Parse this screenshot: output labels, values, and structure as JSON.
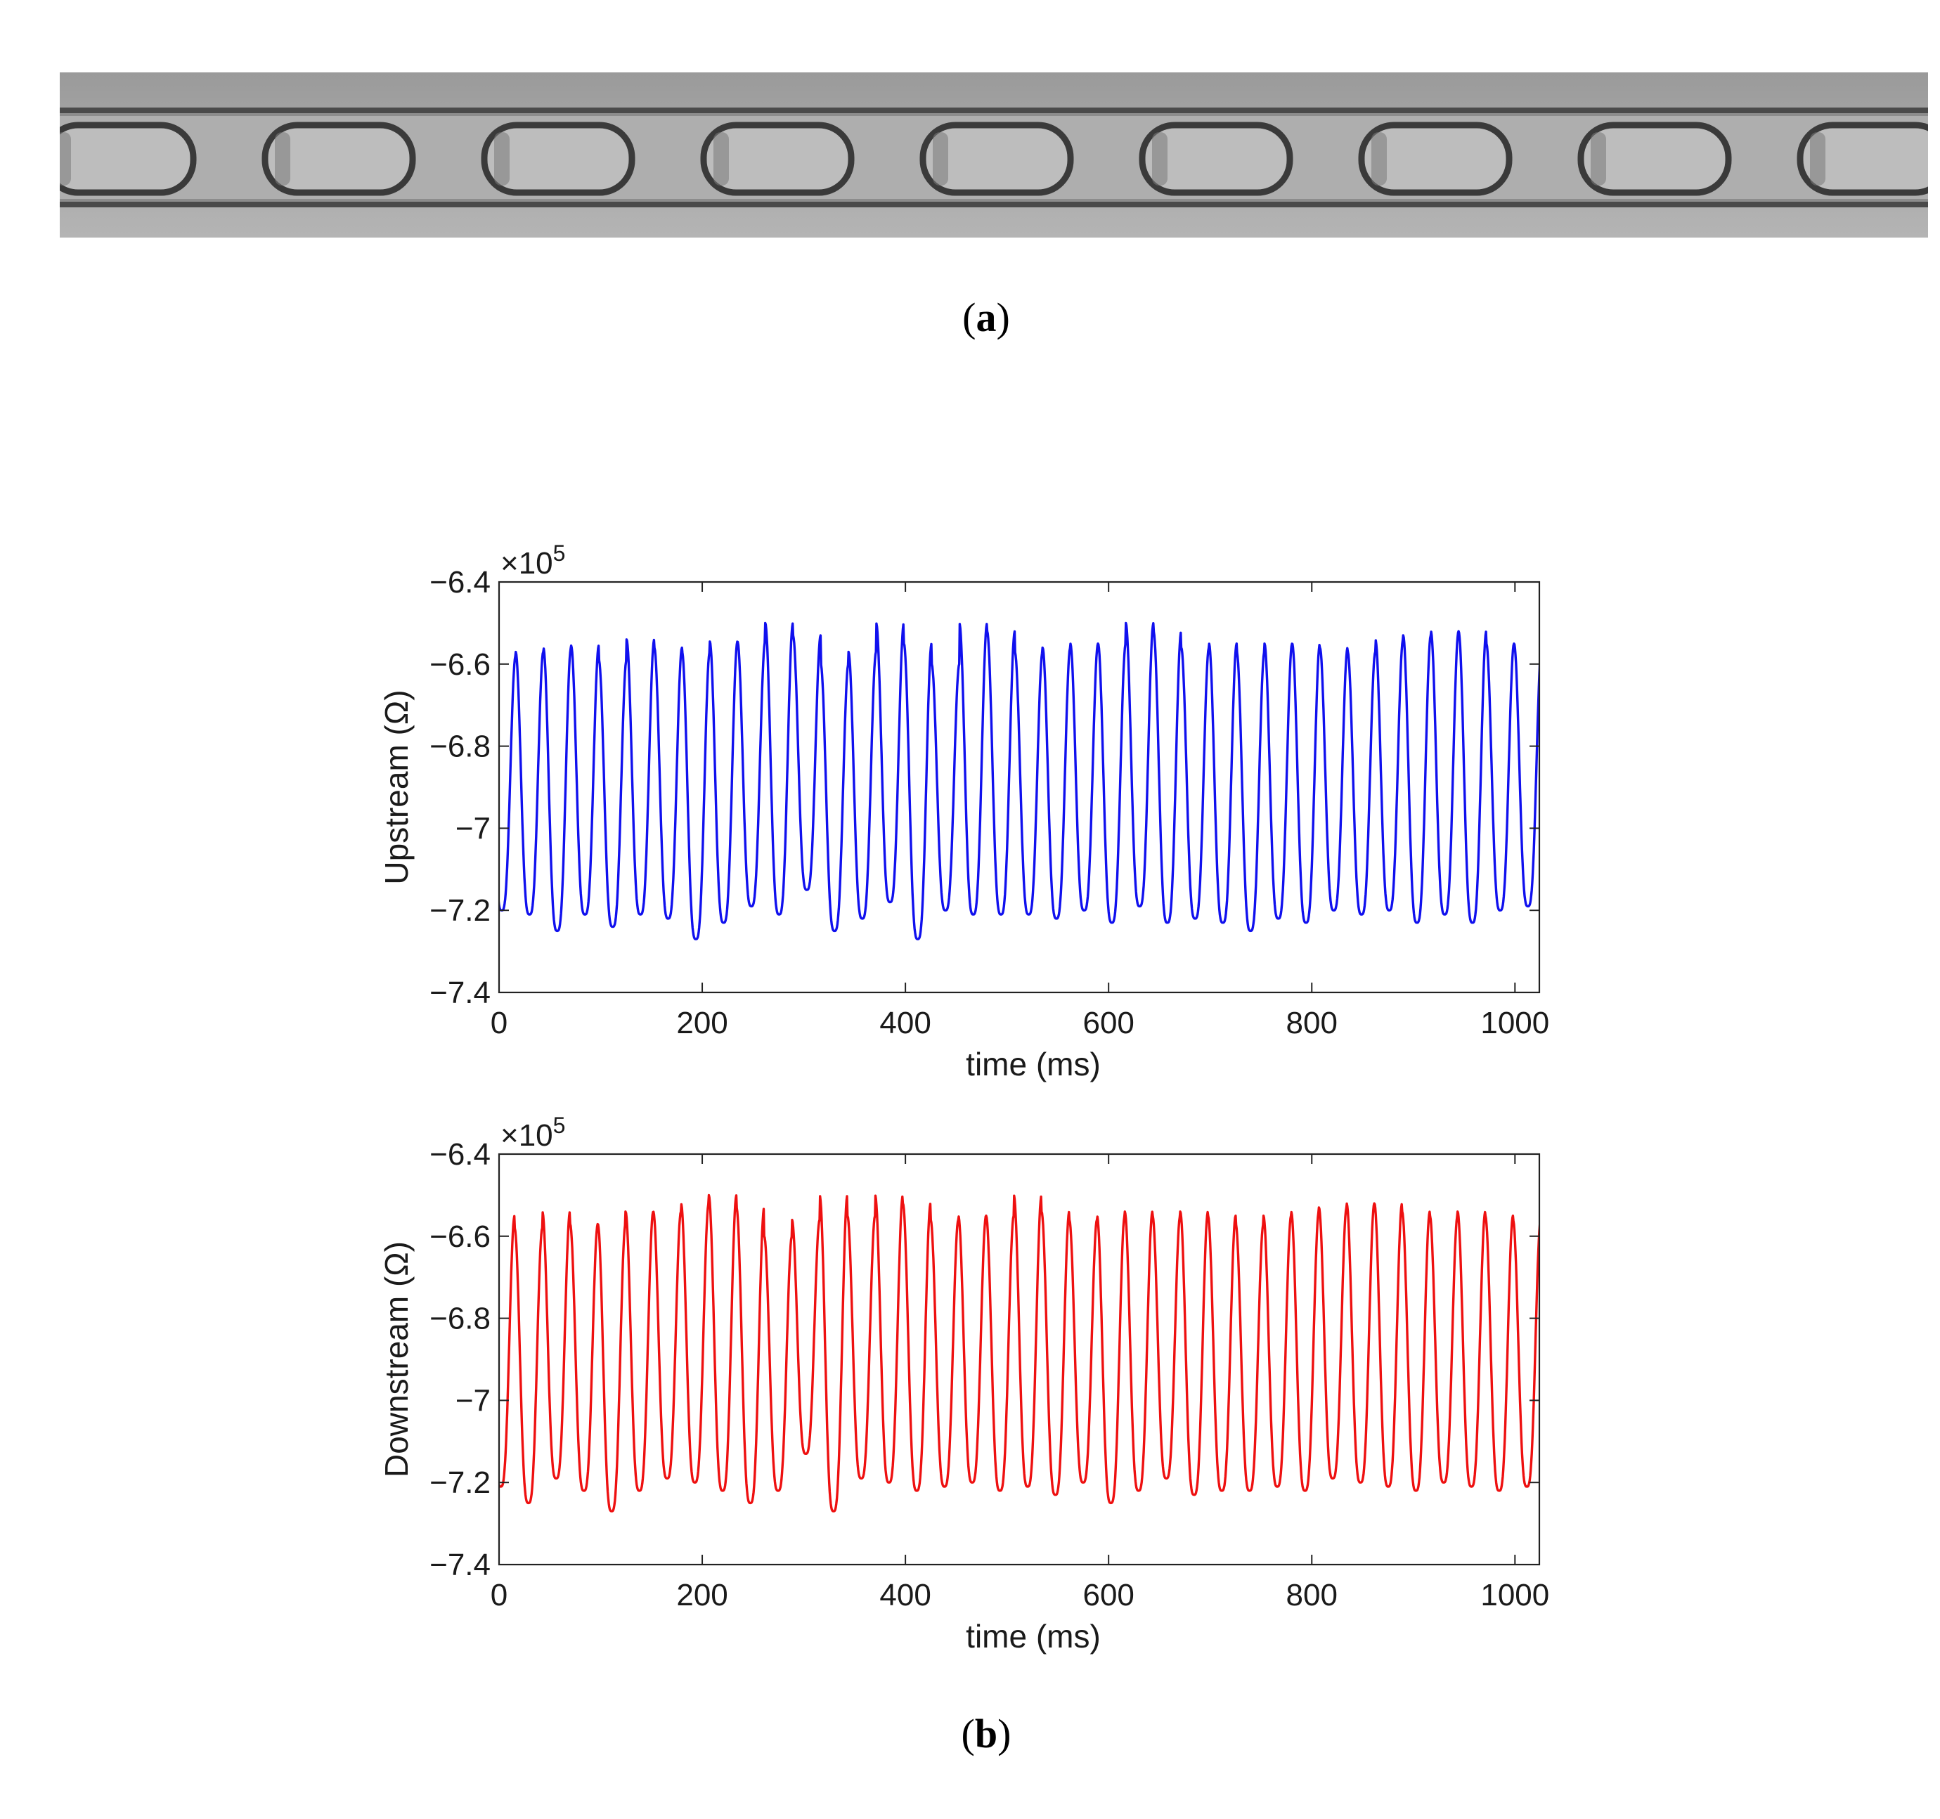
{
  "figure": {
    "panel_labels": [
      "a",
      "b"
    ],
    "photo": {
      "description_icon": "microchannel-droplets-photo",
      "droplet_count": 9,
      "background_color": "#a9a9a9",
      "droplet_fill": "#bdbdbd",
      "droplet_edge": "#3a3a3a"
    }
  },
  "chart_data": [
    {
      "type": "line",
      "ylabel": "Upstream (Ω)",
      "xlabel": "time (ms)",
      "scale_label": "×10",
      "scale_exponent": "5",
      "xlim": [
        0,
        1024
      ],
      "ylim": [
        -7.4,
        -6.4
      ],
      "xticks": [
        0,
        200,
        400,
        600,
        800,
        1000
      ],
      "xtick_labels": [
        "0",
        "200",
        "400",
        "600",
        "800",
        "1000"
      ],
      "yticks": [
        -6.4,
        -6.6,
        -6.8,
        -7,
        -7.2,
        -7.4
      ],
      "ytick_labels": [
        "−6.4",
        "−6.6",
        "−6.8",
        "−7",
        "−7.2",
        "−7.4"
      ],
      "color": "#1010ee",
      "series": [
        {
          "x_start": -11,
          "period_ms": 27.3,
          "peaks": [
            -6.58,
            -6.57,
            -6.56,
            -6.555,
            -6.59,
            -6.54,
            -6.56,
            -6.57,
            -6.545,
            -6.545,
            -6.5,
            -6.53,
            -6.6,
            -6.57,
            -6.5,
            -6.55,
            -6.6,
            -6.5,
            -6.52,
            -6.57,
            -6.56,
            -6.55,
            -6.55,
            -6.5,
            -6.52,
            -6.56,
            -6.55,
            -6.57,
            -6.55,
            -6.55,
            -6.56,
            -6.57,
            -6.54,
            -6.53,
            -6.52,
            -6.52,
            -6.55,
            -6.55,
            -6.57,
            -6.54
          ],
          "troughs": [
            -7.2,
            -7.21,
            -7.25,
            -7.21,
            -7.24,
            -7.21,
            -7.22,
            -7.27,
            -7.23,
            -7.19,
            -7.21,
            -7.15,
            -7.25,
            -7.22,
            -7.18,
            -7.27,
            -7.2,
            -7.21,
            -7.21,
            -7.21,
            -7.22,
            -7.2,
            -7.23,
            -7.19,
            -7.23,
            -7.22,
            -7.23,
            -7.25,
            -7.22,
            -7.23,
            -7.2,
            -7.21,
            -7.2,
            -7.23,
            -7.21,
            -7.23,
            -7.2,
            -7.19,
            -7.23,
            -7.22
          ]
        }
      ]
    },
    {
      "type": "line",
      "ylabel": "Downstream (Ω)",
      "xlabel": "time (ms)",
      "scale_label": "×10",
      "scale_exponent": "5",
      "xlim": [
        0,
        1024
      ],
      "ylim": [
        -7.4,
        -6.4
      ],
      "xticks": [
        0,
        200,
        400,
        600,
        800,
        1000
      ],
      "xtick_labels": [
        "0",
        "200",
        "400",
        "600",
        "800",
        "1000"
      ],
      "yticks": [
        -6.4,
        -6.6,
        -6.8,
        -7,
        -7.2,
        -7.4
      ],
      "ytick_labels": [
        "−6.4",
        "−6.6",
        "−6.8",
        "−7",
        "−7.2",
        "−7.4"
      ],
      "color": "#ee1010",
      "series": [
        {
          "x_start": -12,
          "period_ms": 27.3,
          "peaks": [
            -6.55,
            -6.58,
            -6.54,
            -6.57,
            -6.57,
            -6.54,
            -6.54,
            -6.52,
            -6.5,
            -6.53,
            -6.6,
            -6.56,
            -6.5,
            -6.55,
            -6.5,
            -6.52,
            -6.56,
            -6.55,
            -6.55,
            -6.5,
            -6.54,
            -6.56,
            -6.55,
            -6.54,
            -6.55,
            -6.54,
            -6.55,
            -6.57,
            -6.55,
            -6.54,
            -6.53,
            -6.52,
            -6.52,
            -6.54,
            -6.55,
            -6.54,
            -6.55,
            -6.56,
            -6.57,
            -6.56
          ],
          "troughs": [
            -7.21,
            -7.25,
            -7.19,
            -7.22,
            -7.27,
            -7.22,
            -7.19,
            -7.2,
            -7.22,
            -7.25,
            -7.22,
            -7.13,
            -7.27,
            -7.19,
            -7.2,
            -7.22,
            -7.21,
            -7.2,
            -7.22,
            -7.21,
            -7.23,
            -7.2,
            -7.25,
            -7.22,
            -7.19,
            -7.23,
            -7.22,
            -7.22,
            -7.21,
            -7.22,
            -7.19,
            -7.2,
            -7.21,
            -7.22,
            -7.2,
            -7.21,
            -7.22,
            -7.21,
            -7.2,
            -7.24
          ]
        }
      ]
    }
  ]
}
